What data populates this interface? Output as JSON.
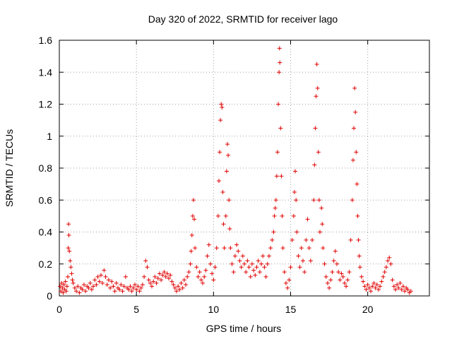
{
  "chart_data": {
    "type": "scatter",
    "title": "Day 320 of 2022, SRMTID for receiver lago",
    "xlabel": "GPS time / hours",
    "ylabel": "SRMTID / TECUs",
    "xlim": [
      0,
      24
    ],
    "ylim": [
      0,
      1.6
    ],
    "x_ticks": [
      0,
      5,
      10,
      15,
      20
    ],
    "x_tick_labels": [
      "0",
      "5",
      "10",
      "15",
      "20"
    ],
    "y_ticks": [
      0,
      0.2,
      0.4,
      0.6,
      0.8,
      1,
      1.2,
      1.4,
      1.6
    ],
    "y_tick_labels": [
      "0",
      "0.2",
      "0.4",
      "0.6",
      "0.8",
      "1",
      "1.2",
      "1.4",
      "1.6"
    ],
    "grid": true,
    "marker": "+",
    "marker_color": "#e00000",
    "series": [
      {
        "name": "SRMTID",
        "points": [
          [
            0.05,
            0.06
          ],
          [
            0.1,
            0.03
          ],
          [
            0.15,
            0.08
          ],
          [
            0.2,
            0.05
          ],
          [
            0.25,
            0.02
          ],
          [
            0.3,
            0.07
          ],
          [
            0.35,
            0.04
          ],
          [
            0.4,
            0.09
          ],
          [
            0.45,
            0.03
          ],
          [
            0.5,
            0.06
          ],
          [
            0.55,
            0.12
          ],
          [
            0.58,
            0.3
          ],
          [
            0.6,
            0.45
          ],
          [
            0.62,
            0.38
          ],
          [
            0.65,
            0.28
          ],
          [
            0.7,
            0.22
          ],
          [
            0.75,
            0.18
          ],
          [
            0.8,
            0.14
          ],
          [
            0.85,
            0.1
          ],
          [
            0.9,
            0.08
          ],
          [
            1.0,
            0.05
          ],
          [
            1.1,
            0.03
          ],
          [
            1.2,
            0.06
          ],
          [
            1.3,
            0.02
          ],
          [
            1.4,
            0.05
          ],
          [
            1.5,
            0.04
          ],
          [
            1.6,
            0.07
          ],
          [
            1.7,
            0.03
          ],
          [
            1.8,
            0.06
          ],
          [
            1.9,
            0.05
          ],
          [
            2.0,
            0.08
          ],
          [
            2.1,
            0.04
          ],
          [
            2.2,
            0.06
          ],
          [
            2.3,
            0.1
          ],
          [
            2.4,
            0.07
          ],
          [
            2.5,
            0.12
          ],
          [
            2.6,
            0.09
          ],
          [
            2.7,
            0.13
          ],
          [
            2.8,
            0.08
          ],
          [
            2.9,
            0.16
          ],
          [
            3.0,
            0.12
          ],
          [
            3.1,
            0.07
          ],
          [
            3.2,
            0.1
          ],
          [
            3.3,
            0.05
          ],
          [
            3.4,
            0.09
          ],
          [
            3.5,
            0.06
          ],
          [
            3.6,
            0.03
          ],
          [
            3.7,
            0.08
          ],
          [
            3.8,
            0.05
          ],
          [
            3.9,
            0.04
          ],
          [
            4.0,
            0.07
          ],
          [
            4.1,
            0.03
          ],
          [
            4.2,
            0.06
          ],
          [
            4.3,
            0.12
          ],
          [
            4.4,
            0.05
          ],
          [
            4.5,
            0.04
          ],
          [
            4.6,
            0.06
          ],
          [
            4.7,
            0.03
          ],
          [
            4.8,
            0.05
          ],
          [
            4.9,
            0.07
          ],
          [
            5.0,
            0.04
          ],
          [
            5.1,
            0.06
          ],
          [
            5.2,
            0.03
          ],
          [
            5.3,
            0.05
          ],
          [
            5.4,
            0.07
          ],
          [
            5.5,
            0.12
          ],
          [
            5.6,
            0.22
          ],
          [
            5.7,
            0.18
          ],
          [
            5.8,
            0.1
          ],
          [
            5.9,
            0.08
          ],
          [
            6.0,
            0.06
          ],
          [
            6.1,
            0.09
          ],
          [
            6.2,
            0.12
          ],
          [
            6.3,
            0.08
          ],
          [
            6.4,
            0.11
          ],
          [
            6.5,
            0.14
          ],
          [
            6.6,
            0.1
          ],
          [
            6.7,
            0.13
          ],
          [
            6.8,
            0.15
          ],
          [
            6.9,
            0.12
          ],
          [
            7.0,
            0.14
          ],
          [
            7.1,
            0.11
          ],
          [
            7.2,
            0.13
          ],
          [
            7.3,
            0.09
          ],
          [
            7.4,
            0.07
          ],
          [
            7.5,
            0.05
          ],
          [
            7.6,
            0.03
          ],
          [
            7.7,
            0.06
          ],
          [
            7.8,
            0.04
          ],
          [
            7.9,
            0.08
          ],
          [
            8.0,
            0.05
          ],
          [
            8.1,
            0.1
          ],
          [
            8.2,
            0.07
          ],
          [
            8.3,
            0.12
          ],
          [
            8.4,
            0.15
          ],
          [
            8.5,
            0.2
          ],
          [
            8.55,
            0.28
          ],
          [
            8.6,
            0.38
          ],
          [
            8.65,
            0.5
          ],
          [
            8.7,
            0.6
          ],
          [
            8.75,
            0.48
          ],
          [
            8.8,
            0.3
          ],
          [
            8.9,
            0.18
          ],
          [
            9.0,
            0.12
          ],
          [
            9.1,
            0.15
          ],
          [
            9.2,
            0.1
          ],
          [
            9.3,
            0.08
          ],
          [
            9.4,
            0.12
          ],
          [
            9.5,
            0.16
          ],
          [
            9.6,
            0.25
          ],
          [
            9.7,
            0.32
          ],
          [
            9.8,
            0.2
          ],
          [
            9.9,
            0.14
          ],
          [
            10.0,
            0.1
          ],
          [
            10.1,
            0.18
          ],
          [
            10.2,
            0.3
          ],
          [
            10.3,
            0.5
          ],
          [
            10.35,
            0.72
          ],
          [
            10.4,
            0.9
          ],
          [
            10.45,
            1.1
          ],
          [
            10.5,
            1.2
          ],
          [
            10.55,
            1.18
          ],
          [
            10.6,
            0.65
          ],
          [
            10.65,
            0.45
          ],
          [
            10.7,
            0.3
          ],
          [
            10.8,
            0.5
          ],
          [
            10.85,
            0.78
          ],
          [
            10.9,
            0.95
          ],
          [
            10.95,
            0.88
          ],
          [
            11.0,
            0.6
          ],
          [
            11.05,
            0.42
          ],
          [
            11.1,
            0.3
          ],
          [
            11.2,
            0.2
          ],
          [
            11.3,
            0.15
          ],
          [
            11.4,
            0.25
          ],
          [
            11.5,
            0.32
          ],
          [
            11.6,
            0.28
          ],
          [
            11.7,
            0.22
          ],
          [
            11.8,
            0.18
          ],
          [
            11.9,
            0.25
          ],
          [
            12.0,
            0.2
          ],
          [
            12.1,
            0.15
          ],
          [
            12.2,
            0.22
          ],
          [
            12.3,
            0.18
          ],
          [
            12.4,
            0.12
          ],
          [
            12.5,
            0.2
          ],
          [
            12.6,
            0.16
          ],
          [
            12.7,
            0.13
          ],
          [
            12.8,
            0.18
          ],
          [
            12.9,
            0.22
          ],
          [
            13.0,
            0.15
          ],
          [
            13.1,
            0.2
          ],
          [
            13.2,
            0.25
          ],
          [
            13.3,
            0.18
          ],
          [
            13.4,
            0.12
          ],
          [
            13.5,
            0.2
          ],
          [
            13.6,
            0.25
          ],
          [
            13.7,
            0.3
          ],
          [
            13.8,
            0.35
          ],
          [
            13.9,
            0.4
          ],
          [
            13.95,
            0.5
          ],
          [
            14.0,
            0.55
          ],
          [
            14.05,
            0.6
          ],
          [
            14.1,
            0.75
          ],
          [
            14.15,
            0.9
          ],
          [
            14.2,
            1.2
          ],
          [
            14.25,
            1.4
          ],
          [
            14.28,
            1.55
          ],
          [
            14.3,
            1.46
          ],
          [
            14.35,
            1.05
          ],
          [
            14.4,
            0.75
          ],
          [
            14.45,
            0.5
          ],
          [
            14.5,
            0.3
          ],
          [
            14.6,
            0.15
          ],
          [
            14.7,
            0.08
          ],
          [
            14.8,
            0.05
          ],
          [
            14.9,
            0.1
          ],
          [
            15.0,
            0.18
          ],
          [
            15.1,
            0.35
          ],
          [
            15.2,
            0.5
          ],
          [
            15.25,
            0.65
          ],
          [
            15.3,
            0.78
          ],
          [
            15.35,
            0.6
          ],
          [
            15.4,
            0.4
          ],
          [
            15.5,
            0.25
          ],
          [
            15.6,
            0.18
          ],
          [
            15.7,
            0.3
          ],
          [
            15.8,
            0.22
          ],
          [
            15.9,
            0.15
          ],
          [
            16.0,
            0.35
          ],
          [
            16.1,
            0.48
          ],
          [
            16.2,
            0.3
          ],
          [
            16.3,
            0.22
          ],
          [
            16.4,
            0.35
          ],
          [
            16.5,
            0.6
          ],
          [
            16.55,
            0.82
          ],
          [
            16.6,
            1.05
          ],
          [
            16.65,
            1.25
          ],
          [
            16.7,
            1.45
          ],
          [
            16.75,
            1.3
          ],
          [
            16.8,
            0.9
          ],
          [
            16.85,
            0.6
          ],
          [
            16.9,
            0.4
          ],
          [
            17.0,
            0.55
          ],
          [
            17.05,
            0.45
          ],
          [
            17.1,
            0.3
          ],
          [
            17.2,
            0.2
          ],
          [
            17.3,
            0.12
          ],
          [
            17.4,
            0.08
          ],
          [
            17.5,
            0.05
          ],
          [
            17.6,
            0.1
          ],
          [
            17.7,
            0.15
          ],
          [
            17.8,
            0.22
          ],
          [
            17.9,
            0.28
          ],
          [
            18.0,
            0.2
          ],
          [
            18.1,
            0.15
          ],
          [
            18.2,
            0.1
          ],
          [
            18.3,
            0.14
          ],
          [
            18.4,
            0.12
          ],
          [
            18.5,
            0.08
          ],
          [
            18.6,
            0.06
          ],
          [
            18.7,
            0.1
          ],
          [
            18.8,
            0.15
          ],
          [
            18.9,
            0.35
          ],
          [
            19.0,
            0.6
          ],
          [
            19.05,
            0.85
          ],
          [
            19.1,
            1.05
          ],
          [
            19.15,
            1.3
          ],
          [
            19.2,
            1.15
          ],
          [
            19.25,
            0.9
          ],
          [
            19.3,
            0.7
          ],
          [
            19.35,
            0.5
          ],
          [
            19.4,
            0.35
          ],
          [
            19.45,
            0.25
          ],
          [
            19.5,
            0.18
          ],
          [
            19.6,
            0.12
          ],
          [
            19.7,
            0.09
          ],
          [
            19.8,
            0.06
          ],
          [
            19.9,
            0.04
          ],
          [
            20.0,
            0.07
          ],
          [
            20.1,
            0.05
          ],
          [
            20.2,
            0.03
          ],
          [
            20.3,
            0.06
          ],
          [
            20.4,
            0.08
          ],
          [
            20.5,
            0.05
          ],
          [
            20.6,
            0.07
          ],
          [
            20.7,
            0.04
          ],
          [
            20.8,
            0.06
          ],
          [
            20.9,
            0.09
          ],
          [
            21.0,
            0.12
          ],
          [
            21.1,
            0.15
          ],
          [
            21.2,
            0.18
          ],
          [
            21.3,
            0.22
          ],
          [
            21.4,
            0.24
          ],
          [
            21.5,
            0.2
          ],
          [
            21.6,
            0.1
          ],
          [
            21.7,
            0.06
          ],
          [
            21.8,
            0.04
          ],
          [
            21.9,
            0.07
          ],
          [
            22.0,
            0.05
          ],
          [
            22.1,
            0.08
          ],
          [
            22.2,
            0.04
          ],
          [
            22.3,
            0.06
          ],
          [
            22.4,
            0.03
          ],
          [
            22.5,
            0.05
          ],
          [
            22.6,
            0.04
          ],
          [
            22.7,
            0.02
          ],
          [
            22.8,
            0.03
          ]
        ]
      }
    ]
  }
}
